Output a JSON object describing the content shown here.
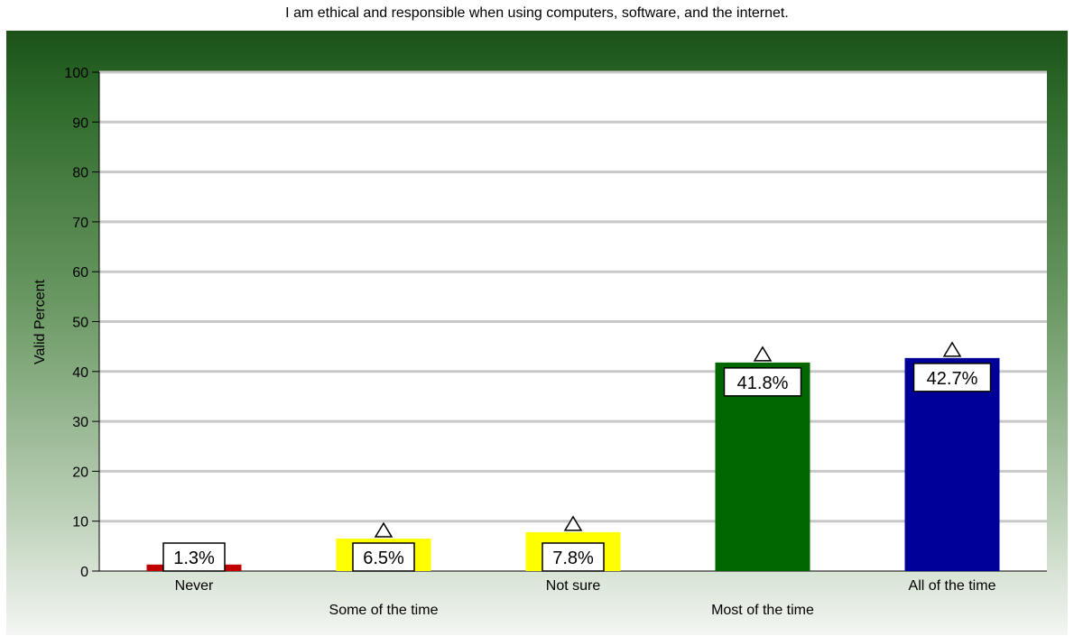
{
  "chart_data": {
    "type": "bar",
    "title": "I am ethical and responsible when using computers, software, and the internet.",
    "ylabel": "Valid Percent",
    "xlabel": "",
    "ylim": [
      0,
      100
    ],
    "yticks": [
      0,
      10,
      20,
      30,
      40,
      50,
      60,
      70,
      80,
      90,
      100
    ],
    "grid": true,
    "categories": [
      "Never",
      "Some of the time",
      "Not sure",
      "Most of the time",
      "All of the time"
    ],
    "values": [
      1.3,
      6.5,
      7.8,
      41.8,
      42.7
    ],
    "data_labels": [
      "1.3%",
      "6.5%",
      "7.8%",
      "41.8%",
      "42.7%"
    ],
    "colors": [
      "#c00000",
      "#ffff00",
      "#ffff00",
      "#006600",
      "#000099"
    ],
    "background_gradient": [
      "#1b5218",
      "#f3f6f2"
    ]
  }
}
